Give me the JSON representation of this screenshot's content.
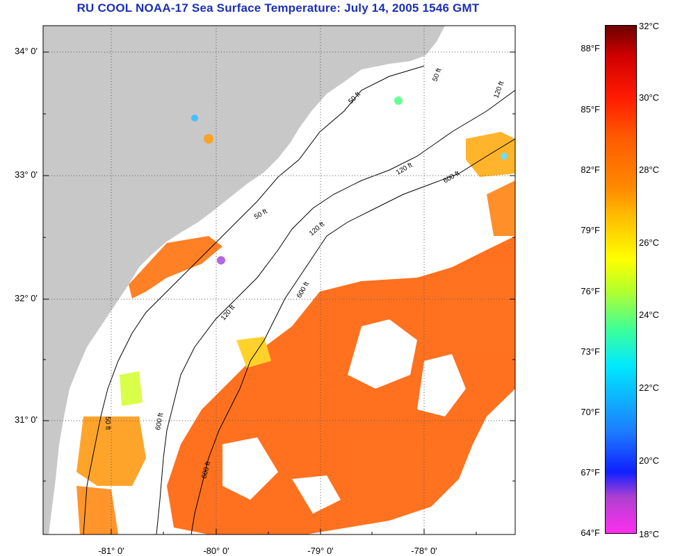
{
  "title": "RU COOL  NOAA-17  Sea Surface Temperature:  July 14, 2005 1546 GMT",
  "lat_labels": [
    "34° 0'",
    "33° 0'",
    "32° 0'",
    "31° 0'"
  ],
  "lon_labels": [
    "-81° 0'",
    "-80° 0'",
    "-79° 0'",
    "-78° 0'"
  ],
  "isobath_labels": [
    "50 ft",
    "120 ft",
    "600 ft",
    "50 ft",
    "120 ft",
    "600 ft",
    "50 ft",
    "120 ft",
    "600 ft",
    "50 ft",
    "120 ft",
    "600 ft"
  ],
  "colorbar": {
    "fahrenheit": [
      "88°F",
      "85°F",
      "82°F",
      "79°F",
      "76°F",
      "73°F",
      "70°F",
      "67°F",
      "64°F"
    ],
    "celsius": [
      "32°C",
      "30°C",
      "28°C",
      "26°C",
      "24°C",
      "22°C",
      "20°C",
      "18°C"
    ]
  },
  "colors": {
    "land": "#c8c8c8",
    "title": "#1a2fb4",
    "sst_main": "#ff6a14"
  }
}
